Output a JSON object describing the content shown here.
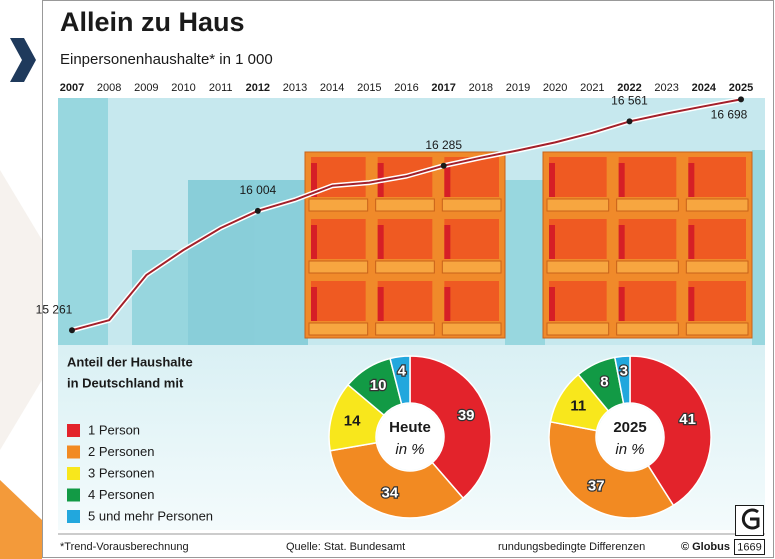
{
  "title": "Allein zu Haus",
  "subtitle": "Einpersonenhaushalte* in 1 000",
  "chart_data": [
    {
      "type": "line",
      "x": [
        2007,
        2008,
        2009,
        2010,
        2011,
        2012,
        2013,
        2014,
        2015,
        2016,
        2017,
        2018,
        2019,
        2020,
        2021,
        2022,
        2023,
        2024,
        2025
      ],
      "values": [
        15261,
        15323,
        15604,
        15760,
        15897,
        16004,
        16073,
        16160,
        16180,
        16220,
        16285,
        16335,
        16380,
        16430,
        16490,
        16561,
        16610,
        16655,
        16698
      ],
      "value_labels": [
        "15 261",
        null,
        null,
        null,
        null,
        "16 004",
        null,
        null,
        null,
        null,
        "16 285",
        null,
        null,
        null,
        null,
        "16 561",
        null,
        null,
        "16 698"
      ],
      "bold_ticks": [
        0,
        5,
        10,
        15,
        17,
        18
      ],
      "xlim": [
        2007,
        2025
      ],
      "ylim": [
        15200,
        16750
      ],
      "color": "#a3202a"
    },
    {
      "type": "pie",
      "center_title": "Heute",
      "center_subtitle": "in %",
      "values": [
        39,
        34,
        14,
        10,
        4
      ],
      "colors": [
        "#e3232b",
        "#f28a22",
        "#f8e71c",
        "#129a45",
        "#22a7dd"
      ]
    },
    {
      "type": "pie",
      "center_title": "2025",
      "center_subtitle": "in %",
      "values": [
        41,
        37,
        11,
        8,
        3
      ],
      "colors": [
        "#e3232b",
        "#f28a22",
        "#f8e71c",
        "#129a45",
        "#22a7dd"
      ]
    }
  ],
  "legend": {
    "title": [
      "Anteil der Haushalte",
      "in Deutschland mit"
    ],
    "items": [
      "1 Person",
      "2 Personen",
      "3 Personen",
      "4 Personen",
      "5 und mehr Personen"
    ],
    "colors": [
      "#e3232b",
      "#f28a22",
      "#f8e71c",
      "#129a45",
      "#22a7dd"
    ]
  },
  "footer": {
    "note": "*Trend-Vorausberechnung",
    "source": "Quelle: Stat. Bundesamt",
    "rounding": "rundungsbedingte Differenzen",
    "brand": "© Globus",
    "number": "1669"
  }
}
